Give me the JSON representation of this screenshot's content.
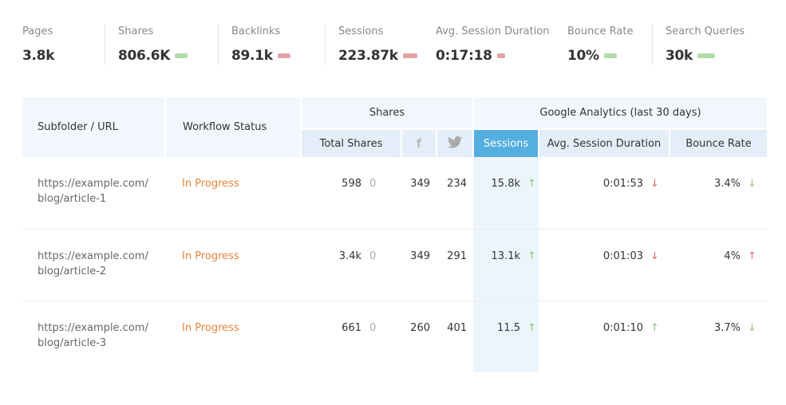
{
  "stats": [
    {
      "label": "Pages",
      "value": "3.8k",
      "bar": null
    },
    {
      "label": "Shares",
      "value": "806.6K",
      "bar": "#b5dba8"
    },
    {
      "label": "Backlinks",
      "value": "89.1k",
      "bar": "#e3a3a3"
    },
    {
      "label": "Sessions",
      "value": "223.87k",
      "bar": "#e3a3a3"
    },
    {
      "label": "Avg. Session Duration",
      "value": "0:17:18",
      "bar": "#e3a3a3"
    },
    {
      "label": "Bounce Rate",
      "value": "10%",
      "bar": "#b5dba8"
    },
    {
      "label": "Search Queries",
      "value": "30k",
      "bar": "#b5dba8"
    }
  ],
  "table": {
    "headers": {
      "url": "Subfolder / URL",
      "status": "Workflow Status",
      "shares": "Shares",
      "ga": "Google Analytics (last 30 days)",
      "total_shares": "Total Shares",
      "facebook": "f",
      "sessions": "Sessions",
      "avg": "Avg. Session Duration",
      "bounce": "Bounce Rate"
    },
    "rows": [
      {
        "url1": "https://example.com/",
        "url2": "blog/article-1",
        "status": "In Progress",
        "total": "598",
        "delta": "0",
        "fb": "349",
        "tw": "234",
        "sessions": "15.8k",
        "sessions_trend": "up",
        "avg": "0:01:53",
        "avg_trend": "down-bad",
        "bounce": "3.4%",
        "bounce_trend": "down-good"
      },
      {
        "url1": "https://example.com/",
        "url2": "blog/article-2",
        "status": "In Progress",
        "total": "3.4k",
        "delta": "0",
        "fb": "349",
        "tw": "291",
        "sessions": "13.1k",
        "sessions_trend": "up",
        "avg": "0:01:03",
        "avg_trend": "down-bad",
        "bounce": "4%",
        "bounce_trend": "up-bad"
      },
      {
        "url1": "https://example.com/",
        "url2": "blog/article-3",
        "status": "In Progress",
        "total": "661",
        "delta": "0",
        "fb": "260",
        "tw": "401",
        "sessions": "11.5",
        "sessions_trend": "up",
        "avg": "0:01:10",
        "avg_trend": "up",
        "bounce": "3.7%",
        "bounce_trend": "down-good"
      }
    ]
  },
  "colors": {
    "accent": "#55aee0",
    "status": "#e9833b",
    "good": "#8cc47c",
    "bad": "#e06c6c"
  }
}
